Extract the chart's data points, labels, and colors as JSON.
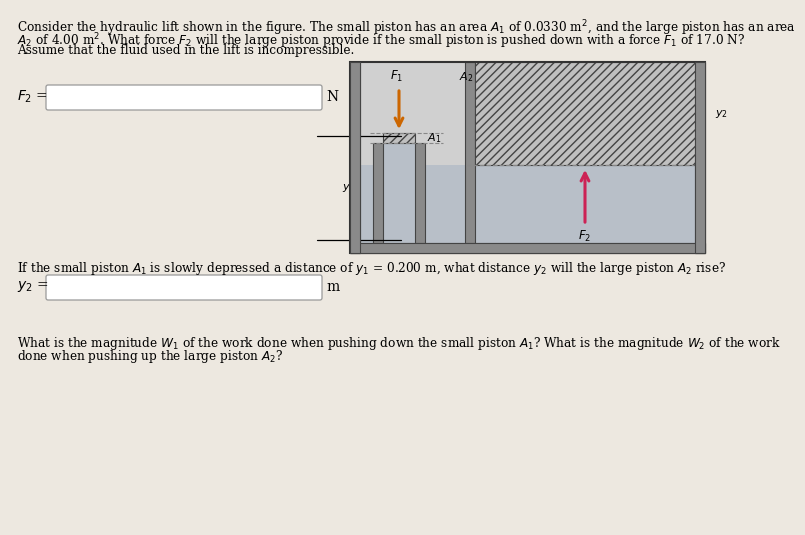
{
  "bg_color": "#ede8e0",
  "title_lines": [
    "Consider the hydraulic lift shown in the figure. The small piston has an area $A_1$ of 0.0330 m$^2$, and the large piston has an area",
    "$A_2$ of 4.00 m$^2$. What force $F_2$ will the large piston provide if the small piston is pushed down with a force $F_1$ of 17.0 N?",
    "Assume that the fluid used in the lift is incompressible."
  ],
  "question2_line": "If the small piston $A_1$ is slowly depressed a distance of $y_1$ = 0.200 m, what distance $y_2$ will the large piston $A_2$ rise?",
  "question3_lines": [
    "What is the magnitude $W_1$ of the work done when pushing down the small piston $A_1$? What is the magnitude $W_2$ of the work",
    "done when pushing up the large piston $A_2$?"
  ],
  "F2_label": "$F_2$ =",
  "F2_unit": "N",
  "y2_label": "$y_2$ =",
  "y2_unit": "m",
  "wall_color": "#8a8a8a",
  "fluid_color": "#b8bfc8",
  "inner_bg": "#d0d0d0",
  "hatch_face": "#c0c0c0",
  "F1_color": "#cc6600",
  "F2_color": "#cc2255",
  "dash_color": "#888888"
}
